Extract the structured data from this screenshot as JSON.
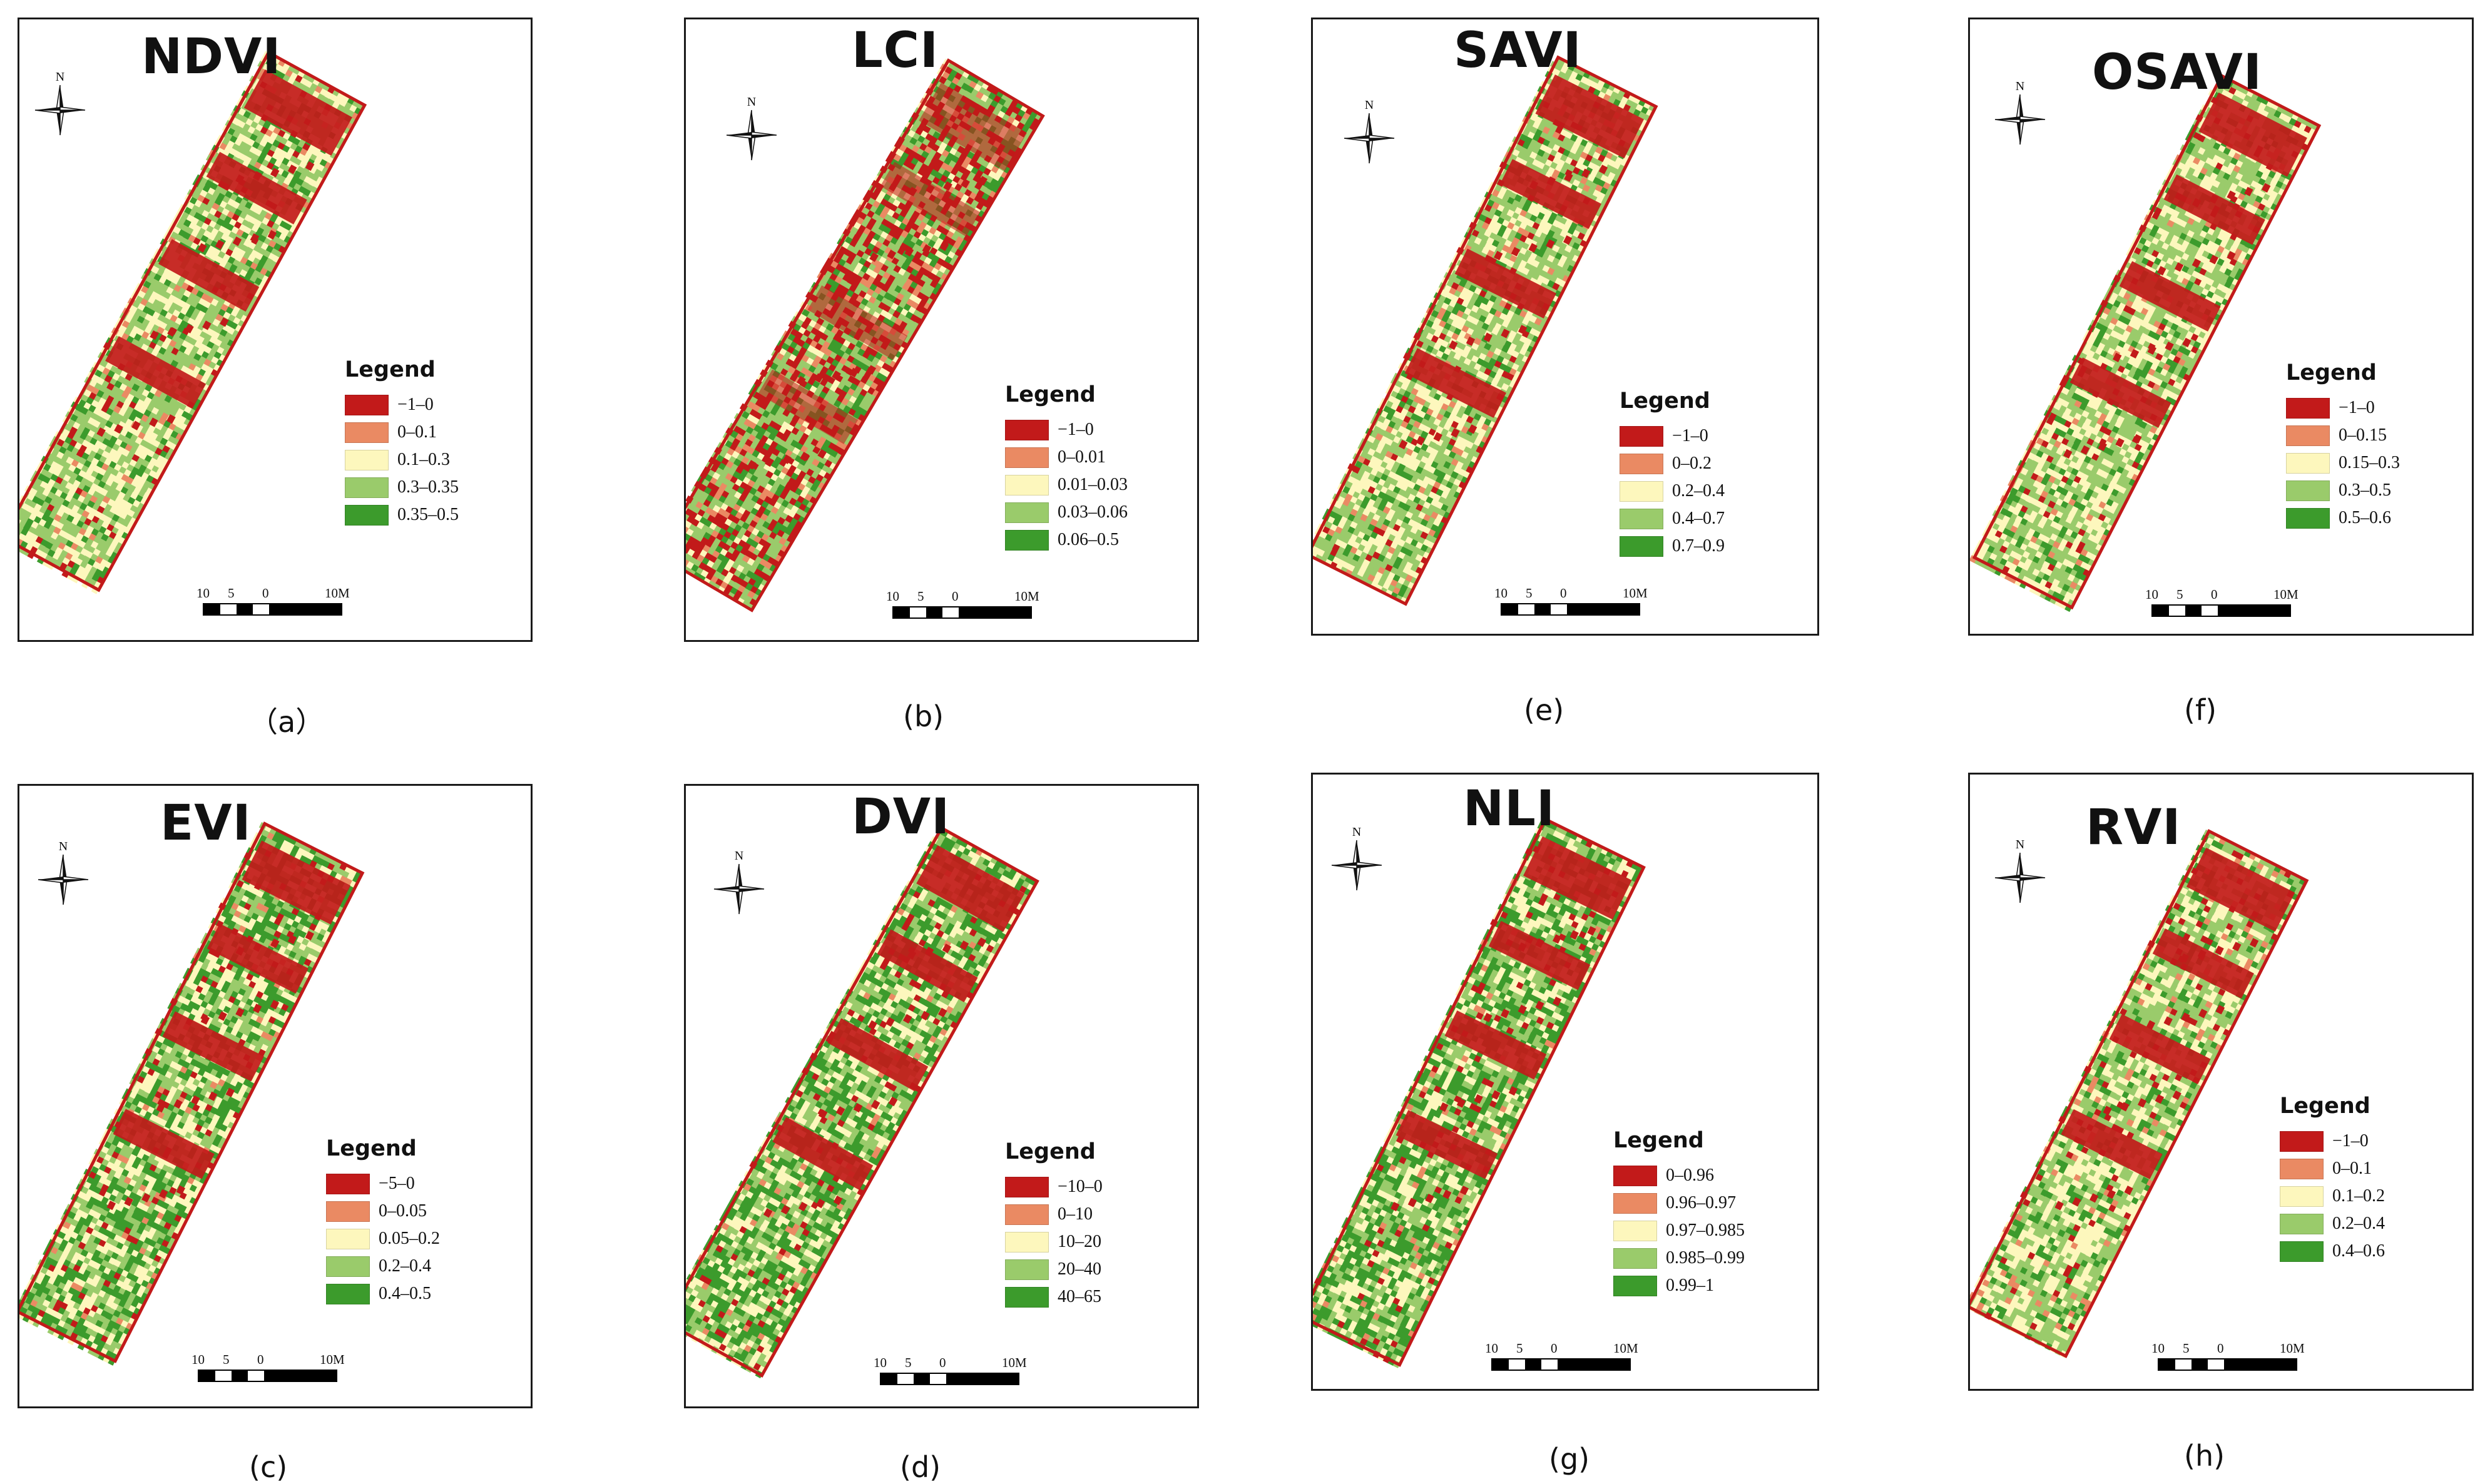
{
  "legend_heading": "Legend",
  "compass_letter": "N",
  "scale_labels": [
    "10",
    "5",
    "0",
    "10M"
  ],
  "colors": {
    "class1": "#c21a1a",
    "class2": "#ea8a63",
    "class3": "#fdf7bd",
    "class4": "#9acb6b",
    "class5": "#3c9b2c"
  },
  "panels": [
    {
      "id": "a",
      "title": "NDVI",
      "caption": "（a）",
      "legend": [
        "−1–0",
        "0–0.1",
        "0.1–0.3",
        "0.3–0.35",
        "0.35–0.5"
      ]
    },
    {
      "id": "b",
      "title": "LCI",
      "caption": "(b)",
      "legend": [
        "−1–0",
        "0–0.01",
        "0.01–0.03",
        "0.03–0.06",
        "0.06–0.5"
      ]
    },
    {
      "id": "e",
      "title": "SAVI",
      "caption": "(e)",
      "legend": [
        "−1–0",
        "0–0.2",
        "0.2–0.4",
        "0.4–0.7",
        "0.7–0.9"
      ]
    },
    {
      "id": "f",
      "title": "OSAVI",
      "caption": "(f)",
      "legend": [
        "−1–0",
        "0–0.15",
        "0.15–0.3",
        "0.3–0.5",
        "0.5–0.6"
      ]
    },
    {
      "id": "c",
      "title": "EVI",
      "caption": "(c)",
      "legend": [
        "−5–0",
        "0–0.05",
        "0.05–0.2",
        "0.2–0.4",
        "0.4–0.5"
      ]
    },
    {
      "id": "d",
      "title": "DVI",
      "caption": "(d)",
      "legend": [
        "−10–0",
        "0–10",
        "10–20",
        "20–40",
        "40–65"
      ]
    },
    {
      "id": "g",
      "title": "NLI",
      "caption": "(g)",
      "legend": [
        "0–0.96",
        "0.96–0.97",
        "0.97–0.985",
        "0.985–0.99",
        "0.99–1"
      ]
    },
    {
      "id": "h",
      "title": "RVI",
      "caption": "(h)",
      "legend": [
        "−1–0",
        "0–0.1",
        "0.1–0.2",
        "0.2–0.4",
        "0.4–0.6"
      ]
    }
  ]
}
